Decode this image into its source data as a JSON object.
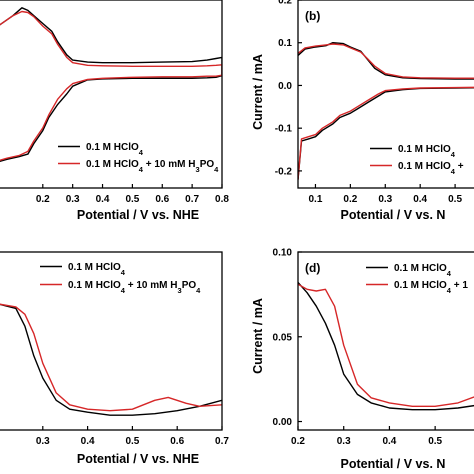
{
  "colors": {
    "black_series": "#000000",
    "red_series": "#d62728"
  },
  "chart_data": [
    {
      "id": "a",
      "panel_label": "",
      "type": "line",
      "xlabel": "Potential / V vs. NHE",
      "ylabel": "",
      "xlim": [
        0.05,
        0.8
      ],
      "ylim": [
        -0.22,
        0.14
      ],
      "xticks": [
        "0.2",
        "0.3",
        "0.4",
        "0.5",
        "0.6",
        "0.7",
        "0.8"
      ],
      "yticks": [],
      "legend": [
        "0.1 M HClO4",
        "0.1 M HClO4 + 10 mM H3PO4"
      ],
      "series": [
        {
          "name": "0.1 M HClO4",
          "x": [
            0.05,
            0.1,
            0.13,
            0.15,
            0.17,
            0.2,
            0.23,
            0.25,
            0.28,
            0.3,
            0.35,
            0.4,
            0.5,
            0.6,
            0.7,
            0.75,
            0.78,
            0.8,
            0.8,
            0.78,
            0.75,
            0.7,
            0.6,
            0.5,
            0.4,
            0.35,
            0.3,
            0.28,
            0.25,
            0.22,
            0.2,
            0.17,
            0.15,
            0.12,
            0.08,
            0.05
          ],
          "y": [
            0.09,
            0.11,
            0.125,
            0.12,
            0.11,
            0.095,
            0.08,
            0.06,
            0.035,
            0.025,
            0.021,
            0.02,
            0.02,
            0.021,
            0.022,
            0.025,
            0.028,
            0.03,
            -0.005,
            -0.008,
            -0.009,
            -0.01,
            -0.01,
            -0.01,
            -0.011,
            -0.013,
            -0.025,
            -0.04,
            -0.06,
            -0.085,
            -0.11,
            -0.135,
            -0.155,
            -0.16,
            -0.165,
            -0.17
          ]
        },
        {
          "name": "0.1 M HClO4 + 10 mM H3PO4",
          "x": [
            0.05,
            0.1,
            0.13,
            0.15,
            0.17,
            0.2,
            0.23,
            0.25,
            0.28,
            0.3,
            0.35,
            0.4,
            0.5,
            0.6,
            0.7,
            0.75,
            0.78,
            0.8,
            0.8,
            0.78,
            0.75,
            0.7,
            0.6,
            0.5,
            0.4,
            0.35,
            0.3,
            0.28,
            0.25,
            0.22,
            0.2,
            0.17,
            0.15,
            0.12,
            0.08,
            0.05
          ],
          "y": [
            0.09,
            0.11,
            0.118,
            0.116,
            0.108,
            0.09,
            0.075,
            0.055,
            0.03,
            0.02,
            0.015,
            0.014,
            0.013,
            0.013,
            0.013,
            0.014,
            0.015,
            0.016,
            -0.004,
            -0.006,
            -0.006,
            -0.007,
            -0.007,
            -0.008,
            -0.01,
            -0.012,
            -0.02,
            -0.03,
            -0.05,
            -0.08,
            -0.105,
            -0.13,
            -0.15,
            -0.158,
            -0.163,
            -0.168
          ]
        }
      ]
    },
    {
      "id": "b",
      "panel_label": "(b)",
      "type": "line",
      "xlabel": "Potential / V vs. N",
      "ylabel": "Current / mA",
      "xlim": [
        0.05,
        0.6
      ],
      "ylim": [
        -0.24,
        0.2
      ],
      "xticks": [
        "0.1",
        "0.2",
        "0.3",
        "0.4",
        "0.5"
      ],
      "yticks": [
        "-0.2",
        "-0.1",
        "0.0",
        "0.1",
        "0.2"
      ],
      "legend": [
        "0.1 M HClO4",
        "0.1 M HClO4 +"
      ],
      "series": [
        {
          "name": "0.1 M HClO4",
          "x": [
            0.05,
            0.07,
            0.1,
            0.13,
            0.15,
            0.18,
            0.2,
            0.23,
            0.25,
            0.27,
            0.3,
            0.35,
            0.4,
            0.5,
            0.6,
            0.6,
            0.5,
            0.4,
            0.35,
            0.3,
            0.28,
            0.25,
            0.22,
            0.2,
            0.17,
            0.15,
            0.12,
            0.1,
            0.08,
            0.06,
            0.05
          ],
          "y": [
            0.07,
            0.085,
            0.09,
            0.093,
            0.1,
            0.098,
            0.09,
            0.08,
            0.06,
            0.04,
            0.025,
            0.018,
            0.016,
            0.015,
            0.015,
            -0.005,
            -0.006,
            -0.007,
            -0.01,
            -0.015,
            -0.025,
            -0.04,
            -0.055,
            -0.065,
            -0.075,
            -0.09,
            -0.105,
            -0.12,
            -0.125,
            -0.13,
            -0.22
          ]
        },
        {
          "name": "0.1 M HClO4 +",
          "x": [
            0.05,
            0.07,
            0.1,
            0.13,
            0.15,
            0.18,
            0.2,
            0.23,
            0.25,
            0.27,
            0.3,
            0.35,
            0.4,
            0.5,
            0.6,
            0.6,
            0.5,
            0.4,
            0.35,
            0.3,
            0.28,
            0.25,
            0.22,
            0.2,
            0.17,
            0.15,
            0.12,
            0.1,
            0.08,
            0.06,
            0.05
          ],
          "y": [
            0.075,
            0.088,
            0.092,
            0.095,
            0.097,
            0.095,
            0.088,
            0.078,
            0.062,
            0.045,
            0.028,
            0.02,
            0.018,
            0.017,
            0.017,
            -0.004,
            -0.005,
            -0.006,
            -0.008,
            -0.012,
            -0.02,
            -0.035,
            -0.05,
            -0.06,
            -0.07,
            -0.085,
            -0.1,
            -0.115,
            -0.12,
            -0.125,
            -0.22
          ]
        }
      ]
    },
    {
      "id": "c",
      "panel_label": "",
      "type": "line",
      "xlabel": "Potential / V vs. NHE",
      "ylabel": "",
      "xlim": [
        0.2,
        0.7
      ],
      "ylim": [
        0.0,
        0.12
      ],
      "xticks": [
        "0.3",
        "0.4",
        "0.5",
        "0.6",
        "0.7"
      ],
      "yticks": [],
      "legend": [
        "0.1 M HClO4",
        "0.1 M HClO4 + 10 mM H3PO4"
      ],
      "series": [
        {
          "name": "0.1 M HClO4",
          "x": [
            0.2,
            0.24,
            0.26,
            0.28,
            0.3,
            0.33,
            0.36,
            0.4,
            0.45,
            0.5,
            0.55,
            0.6,
            0.65,
            0.7
          ],
          "y": [
            0.085,
            0.082,
            0.07,
            0.05,
            0.035,
            0.02,
            0.014,
            0.012,
            0.01,
            0.01,
            0.011,
            0.013,
            0.016,
            0.02
          ]
        },
        {
          "name": "0.1 M HClO4 + 10 mM H3PO4",
          "x": [
            0.2,
            0.24,
            0.26,
            0.28,
            0.3,
            0.33,
            0.36,
            0.4,
            0.45,
            0.5,
            0.55,
            0.58,
            0.62,
            0.65,
            0.7
          ],
          "y": [
            0.085,
            0.083,
            0.078,
            0.065,
            0.045,
            0.025,
            0.017,
            0.014,
            0.013,
            0.014,
            0.02,
            0.022,
            0.018,
            0.016,
            0.017
          ]
        }
      ]
    },
    {
      "id": "d",
      "panel_label": "(d)",
      "type": "line",
      "xlabel": "Potential / V vs. N",
      "ylabel": "Current / mA",
      "xlim": [
        0.2,
        0.62
      ],
      "ylim": [
        -0.005,
        0.1
      ],
      "xticks": [
        "0.2",
        "0.3",
        "0.4",
        "0.5"
      ],
      "yticks": [
        "0.00",
        "0.05",
        "0.10"
      ],
      "legend": [
        "0.1 M HClO4",
        "0.1 M HClO4 + 1"
      ],
      "series": [
        {
          "name": "0.1 M HClO4",
          "x": [
            0.2,
            0.22,
            0.24,
            0.26,
            0.28,
            0.3,
            0.33,
            0.36,
            0.4,
            0.45,
            0.5,
            0.55,
            0.6,
            0.62
          ],
          "y": [
            0.082,
            0.076,
            0.068,
            0.058,
            0.045,
            0.028,
            0.016,
            0.011,
            0.008,
            0.007,
            0.007,
            0.008,
            0.01,
            0.011
          ]
        },
        {
          "name": "0.1 M HClO4 + 1",
          "x": [
            0.2,
            0.22,
            0.24,
            0.26,
            0.28,
            0.3,
            0.33,
            0.36,
            0.4,
            0.45,
            0.5,
            0.55,
            0.6,
            0.62
          ],
          "y": [
            0.081,
            0.078,
            0.077,
            0.078,
            0.068,
            0.045,
            0.022,
            0.014,
            0.011,
            0.009,
            0.009,
            0.011,
            0.016,
            0.02
          ]
        }
      ]
    }
  ]
}
